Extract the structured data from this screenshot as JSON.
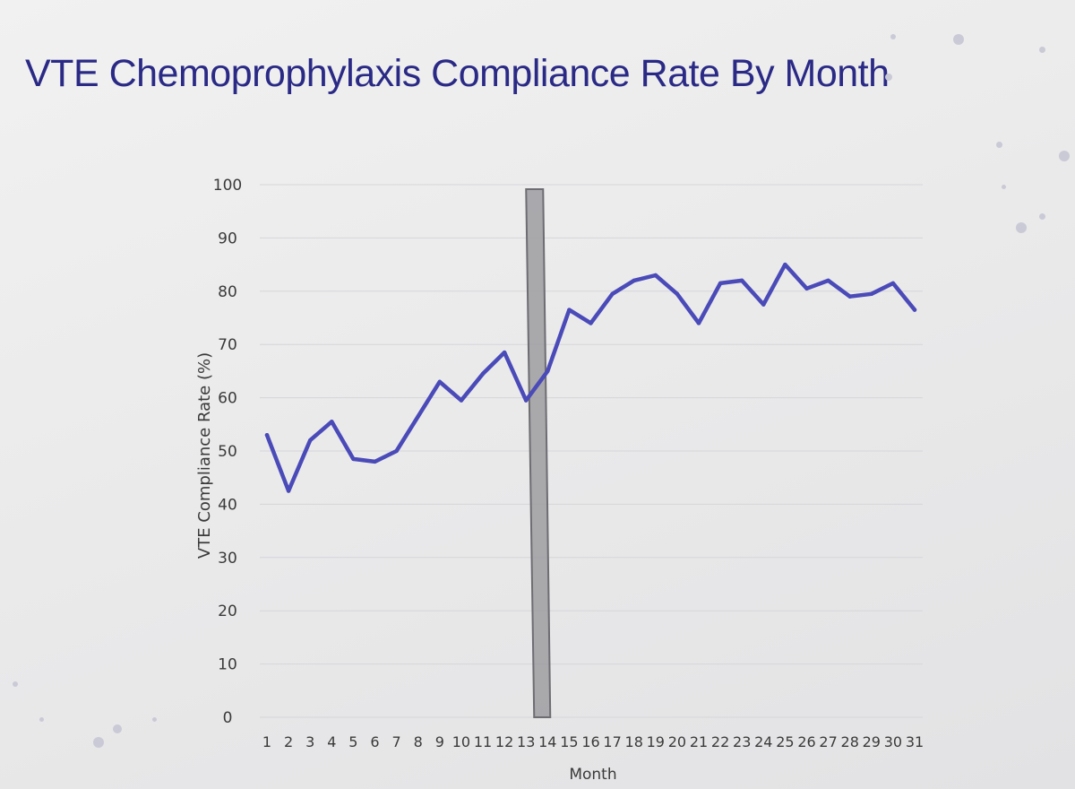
{
  "slide": {
    "title": "VTE Chemoprophylaxis Compliance Rate By Month",
    "title_color": "#2a2a86"
  },
  "chart_data": {
    "type": "line",
    "title": "VTE Chemoprophylaxis Compliance Rate By Month",
    "xlabel": "Month",
    "ylabel": "VTE Compliance Rate (%)",
    "ylim": [
      0,
      100
    ],
    "y_ticks": [
      0,
      10,
      20,
      30,
      40,
      50,
      60,
      70,
      80,
      90,
      100
    ],
    "categories": [
      "1",
      "2",
      "3",
      "4",
      "5",
      "6",
      "7",
      "8",
      "9",
      "10",
      "11",
      "12",
      "13",
      "14",
      "15",
      "16",
      "17",
      "18",
      "19",
      "20",
      "21",
      "22",
      "23",
      "24",
      "25",
      "26",
      "27",
      "28",
      "29",
      "30",
      "31"
    ],
    "series": [
      {
        "values": [
          53,
          42.5,
          52,
          55.5,
          48.5,
          48,
          50,
          56.5,
          63,
          59.5,
          64.5,
          68.5,
          59.5,
          65,
          76.5,
          74,
          79.5,
          82,
          83,
          79.5,
          74,
          81.5,
          82,
          77.5,
          85,
          80.5,
          82,
          79,
          79.5,
          81.5,
          76.5
        ],
        "color": "#4a4ab8"
      }
    ],
    "intervention_bar": {
      "between": [
        13,
        14
      ],
      "color": "#9d9da1"
    },
    "grid": true,
    "legend": "none"
  }
}
